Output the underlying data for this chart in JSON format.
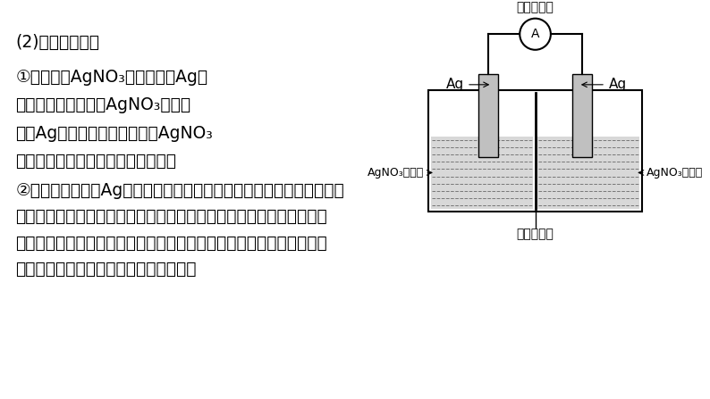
{
  "bg_color": "#ffffff",
  "text_color": "#000000",
  "title_line": "(2)形成浓差电池",
  "para1_lines": [
    "①左池为稀AgNO₃溶液，左侧Ag电",
    "极为负极，右池为浓AgNO₃溶液，",
    "右侧Ag电极为正极。只有两边AgNO₃",
    "溶液浓度不同，才能形成浓差电池。"
  ],
  "para2_lines": [
    "②正、负电极均为Ag单质。随着反应进行，左右两池浓度的差值逐渐减",
    "小，外电路中电流将减小，电流表指针偏转幅度逐渐变小。当左右两侧",
    "离子浓度相等时，电池将停止工作，不再有电流产生，此时溶液中左、",
    "右两边硝酸银溶液的物质的量浓度相等。"
  ],
  "diagram": {
    "ammeter_label": "灵敏电流表",
    "left_electrode_label": "Ag",
    "right_electrode_label": "Ag",
    "left_solution_label": "AgNO₃稀溶液",
    "right_solution_label": "AgNO₃浓溶液",
    "membrane_label": "离子交换膜"
  }
}
